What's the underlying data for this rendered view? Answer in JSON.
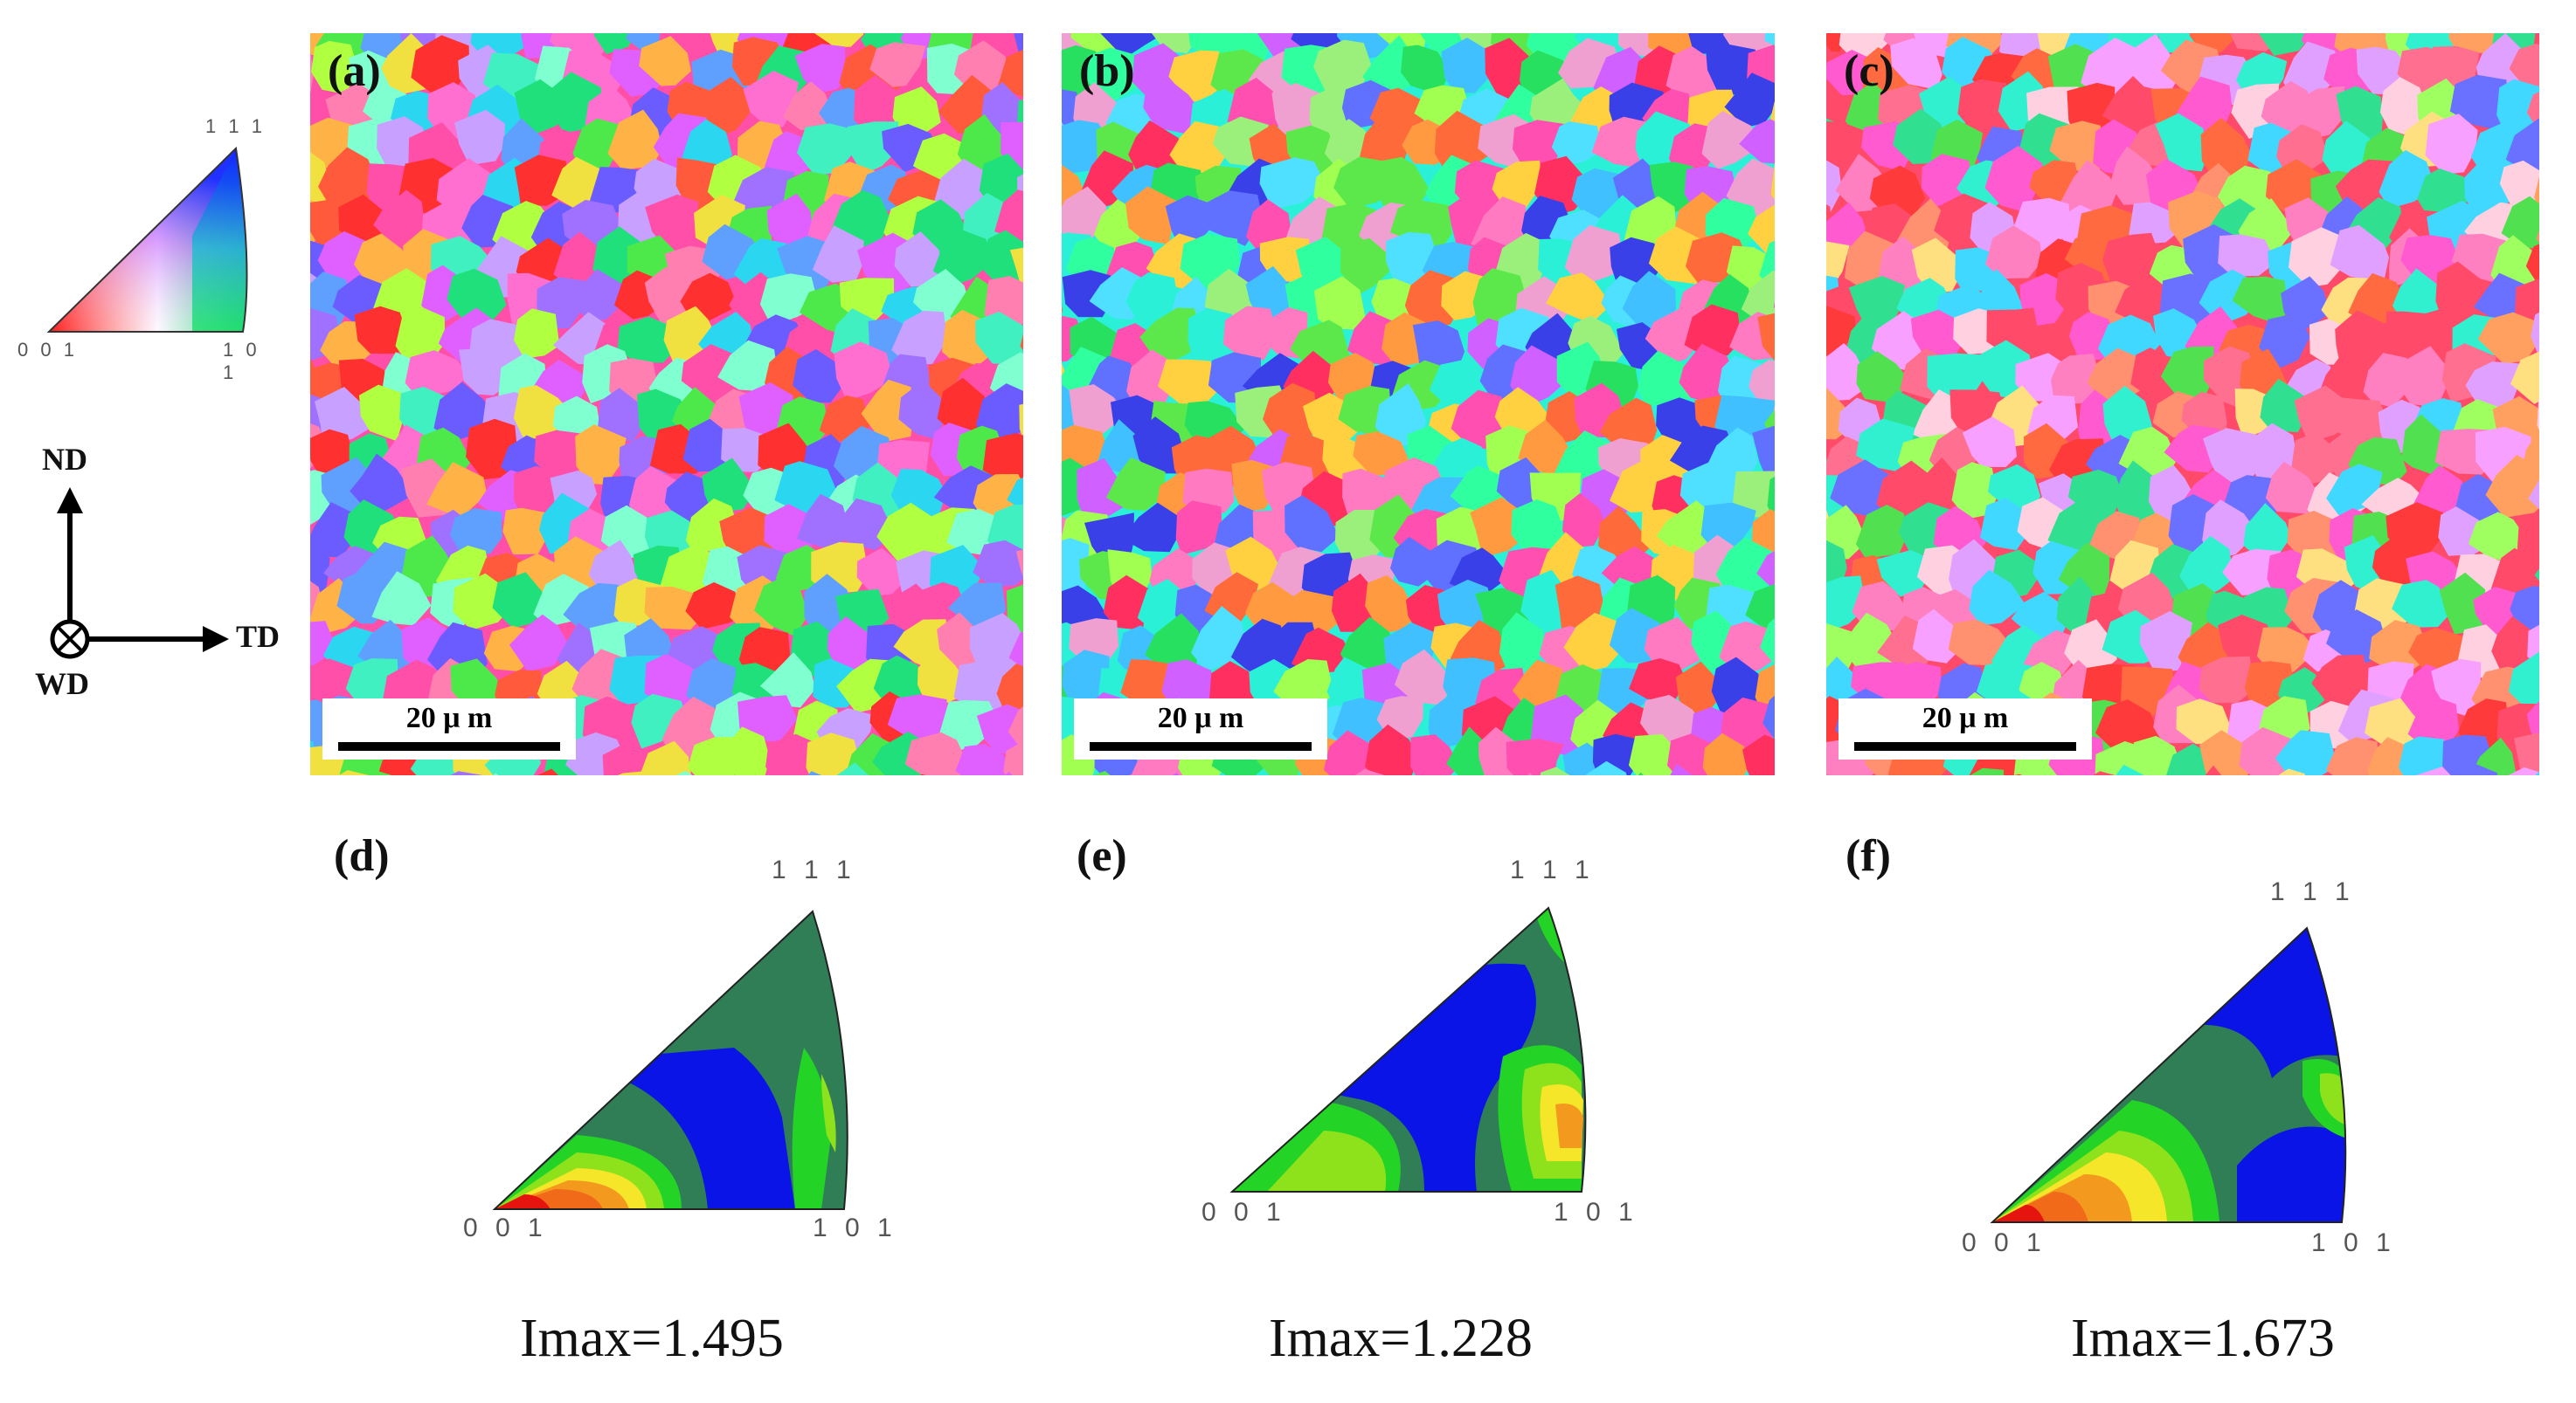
{
  "legend": {
    "corner_top": "1 1 1",
    "corner_left": "0 0 1",
    "corner_right": "1 0 1"
  },
  "axes": {
    "up": "ND",
    "right": "TD",
    "normal": "WD"
  },
  "maps": [
    {
      "label": "(a)",
      "scale": "20 μ m"
    },
    {
      "label": "(b)",
      "scale": "20 μ m"
    },
    {
      "label": "(c)",
      "scale": "20 μ m"
    }
  ],
  "ipf": [
    {
      "label": "(d)",
      "corner_top": "1 1 1",
      "corner_left": "0 0 1",
      "corner_right": "1 0 1",
      "imax": "Imax=1.495"
    },
    {
      "label": "(e)",
      "corner_top": "1 1 1",
      "corner_left": "0 0 1",
      "corner_right": "1 0 1",
      "imax": "Imax=1.228"
    },
    {
      "label": "(f)",
      "corner_top": "1 1 1",
      "corner_left": "0 0 1",
      "corner_right": "1 0 1",
      "imax": "Imax=1.673"
    }
  ],
  "contour_colors": {
    "low": "#0a14e6",
    "mid": "#2f7e55",
    "green": "#23d427",
    "yellowgreen": "#8ee21c",
    "yellow": "#f5e62a",
    "orange": "#f39a1e",
    "orangered": "#f06a1a",
    "red": "#e5140f"
  }
}
